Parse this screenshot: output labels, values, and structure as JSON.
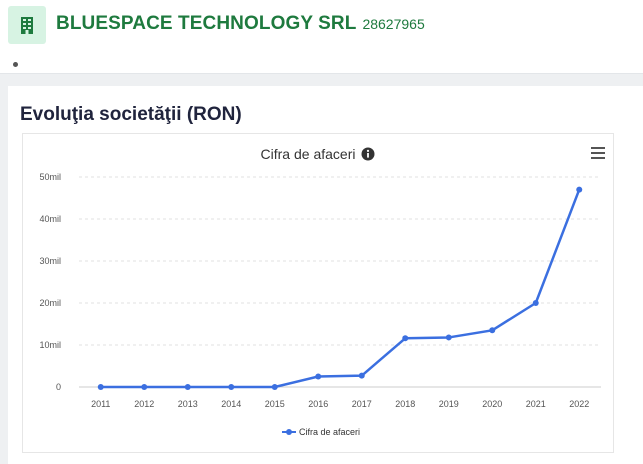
{
  "company": {
    "name": "BLUESPACE TECHNOLOGY SRL",
    "code": "28627965",
    "icon": "building-icon"
  },
  "section": {
    "title": "Evoluţia societăţii (RON)"
  },
  "colors": {
    "brand_green": "#1e7a3e",
    "series_blue": "#3b6fe0"
  },
  "chart_data": {
    "type": "line",
    "title": "Cifra de afaceri",
    "x": [
      "2011",
      "2012",
      "2013",
      "2014",
      "2015",
      "2016",
      "2017",
      "2018",
      "2019",
      "2020",
      "2021",
      "2022"
    ],
    "series": [
      {
        "name": "Cifra de afaceri",
        "values": [
          0,
          0,
          0,
          0,
          0,
          2.5,
          2.7,
          11.6,
          11.8,
          13.5,
          20,
          47
        ]
      }
    ],
    "y_ticks": [
      0,
      10,
      20,
      30,
      40,
      50
    ],
    "y_tick_labels": [
      "0",
      "10mil",
      "20mil",
      "30mil",
      "40mil",
      "50mil"
    ],
    "ylim": [
      0,
      50
    ],
    "grid": true,
    "legend": "bottom-center"
  }
}
